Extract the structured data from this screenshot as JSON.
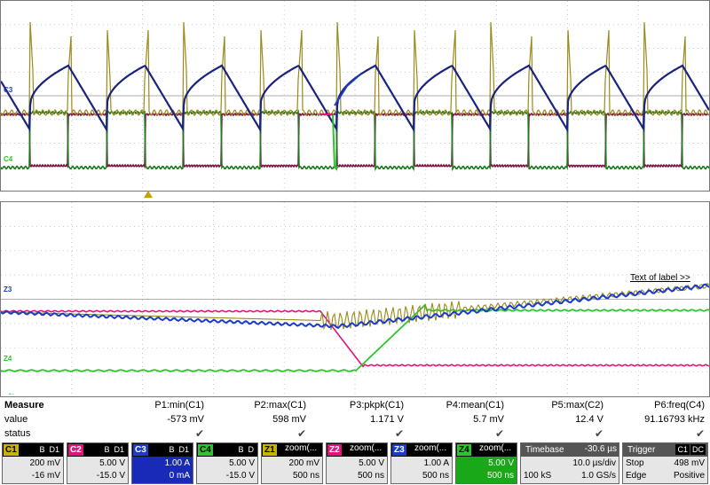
{
  "colors": {
    "c1": "#c8b400",
    "c1_trace": "#9a8a1a",
    "c2": "#e0147a",
    "c2_trace": "#7a1446",
    "c3": "#1a3cc8",
    "c3_trace": "#1a237e",
    "c4": "#2cc62c",
    "c4_trace": "#1a7a1a",
    "grid": "#bdbdbd"
  },
  "channel_markers": {
    "top_c3": "C3",
    "top_c4": "C4",
    "bottom_z3": "Z3",
    "bottom_z4": "Z4"
  },
  "label_annotation": "Text of label >>",
  "measure": {
    "header": "Measure",
    "row_value_label": "value",
    "row_status_label": "status",
    "columns": [
      {
        "name": "P1:min(C1)",
        "value": "-573 mV"
      },
      {
        "name": "P2:max(C1)",
        "value": "598 mV"
      },
      {
        "name": "P3:pkpk(C1)",
        "value": "1.171 V"
      },
      {
        "name": "P4:mean(C1)",
        "value": "5.7 mV"
      },
      {
        "name": "P5:max(C2)",
        "value": "12.4 V"
      },
      {
        "name": "P6:freq(C4)",
        "value": "91.16793 kHz"
      }
    ],
    "status_mark": "✔"
  },
  "descriptors": [
    {
      "tag": "C1",
      "title": "",
      "badges": [
        "B",
        "D1"
      ],
      "line1": "200 mV",
      "line2": "-16 mV"
    },
    {
      "tag": "C2",
      "title": "",
      "badges": [
        "B",
        "D1"
      ],
      "line1": "5.00 V",
      "line2": "-15.0 V"
    },
    {
      "tag": "C3",
      "title": "",
      "badges": [
        "B",
        "D1"
      ],
      "line1": "1.00 A",
      "line2": "0 mA"
    },
    {
      "tag": "C4",
      "title": "",
      "badges": [
        "B",
        "D"
      ],
      "line1": "5.00 V",
      "line2": "-15.0 V"
    },
    {
      "tag": "Z1",
      "title": "zoom(...",
      "badges": [],
      "line1": "200 mV",
      "line2": "500 ns"
    },
    {
      "tag": "Z2",
      "title": "zoom(...",
      "badges": [],
      "line1": "5.00 V",
      "line2": "500 ns"
    },
    {
      "tag": "Z3",
      "title": "zoom(...",
      "badges": [],
      "line1": "1.00 A",
      "line2": "500 ns"
    },
    {
      "tag": "Z4",
      "title": "zoom(...",
      "badges": [],
      "line1": "5.00 V",
      "line2": "500 ns"
    }
  ],
  "timebase": {
    "title": "Timebase",
    "offset": "-30.6 µs",
    "div": "10.0 µs/div",
    "samples": "100 kS",
    "rate": "1.0 GS/s"
  },
  "trigger": {
    "title": "Trigger",
    "badges": [
      "C1",
      "DC"
    ],
    "mode": "Stop",
    "level": "498 mV",
    "type": "Edge",
    "slope": "Positive"
  }
}
